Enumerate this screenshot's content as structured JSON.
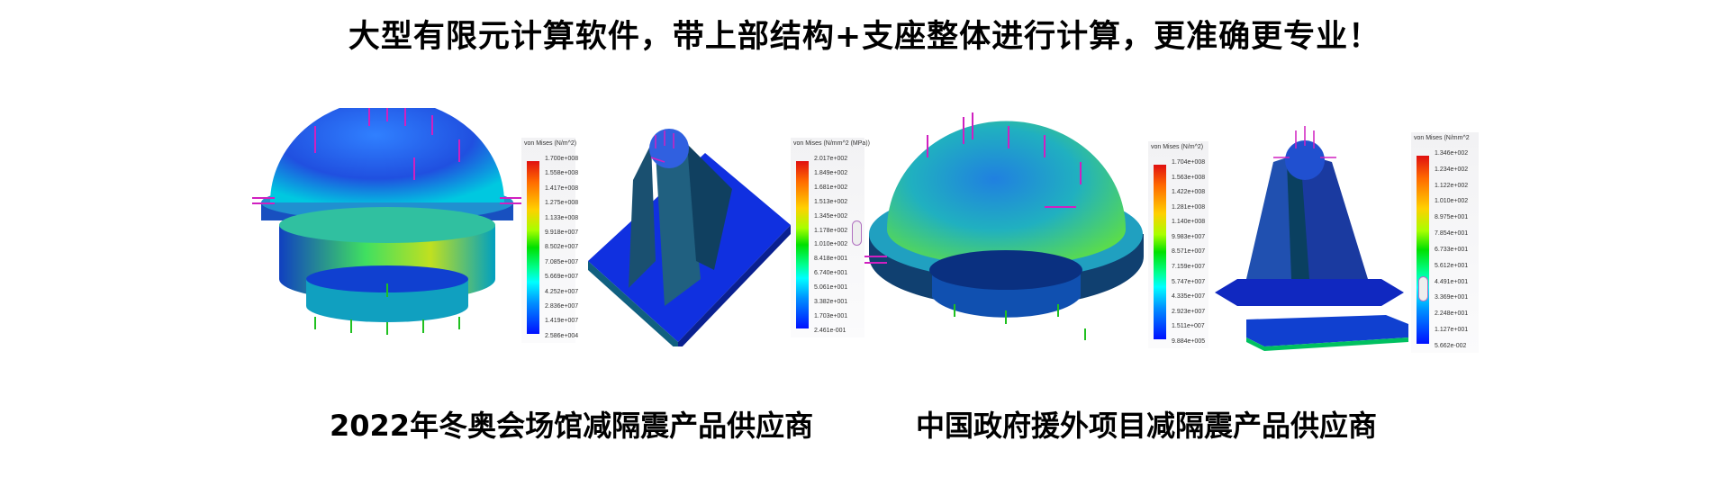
{
  "headline": "大型有限元计算软件，带上部结构+支座整体进行计算，更准确更专业！",
  "captions": {
    "left": "2022年冬奥会场馆减隔震产品供应商",
    "right": "中国政府援外项目减隔震产品供应商"
  },
  "legends": [
    {
      "title": "von Mises (N/m^2)",
      "ticks": [
        "1.700e+008",
        "1.558e+008",
        "1.417e+008",
        "1.275e+008",
        "1.133e+008",
        "9.918e+007",
        "8.502e+007",
        "7.085e+007",
        "5.669e+007",
        "4.252e+007",
        "2.836e+007",
        "1.419e+007",
        "2.586e+004"
      ]
    },
    {
      "title": "von Mises (N/mm^2 (MPa))",
      "ticks": [
        "2.017e+002",
        "1.849e+002",
        "1.681e+002",
        "1.513e+002",
        "1.345e+002",
        "1.178e+002",
        "1.010e+002",
        "8.418e+001",
        "6.740e+001",
        "5.061e+001",
        "3.382e+001",
        "1.703e+001",
        "2.461e-001"
      ]
    },
    {
      "title": "von Mises (N/m^2)",
      "ticks": [
        "1.704e+008",
        "1.563e+008",
        "1.422e+008",
        "1.281e+008",
        "1.140e+008",
        "9.983e+007",
        "8.571e+007",
        "7.159e+007",
        "5.747e+007",
        "4.335e+007",
        "2.923e+007",
        "1.511e+007",
        "9.884e+005"
      ]
    },
    {
      "title": "von Mises (N/mm^2",
      "ticks": [
        "1.346e+002",
        "1.234e+002",
        "1.122e+002",
        "1.010e+002",
        "8.975e+001",
        "7.854e+001",
        "6.733e+001",
        "5.612e+001",
        "4.491e+001",
        "3.369e+001",
        "2.248e+001",
        "1.127e+001",
        "5.662e-002"
      ]
    }
  ],
  "colors": {
    "load_arrow": "#d020c0",
    "fixture_arrow": "#20c020"
  }
}
